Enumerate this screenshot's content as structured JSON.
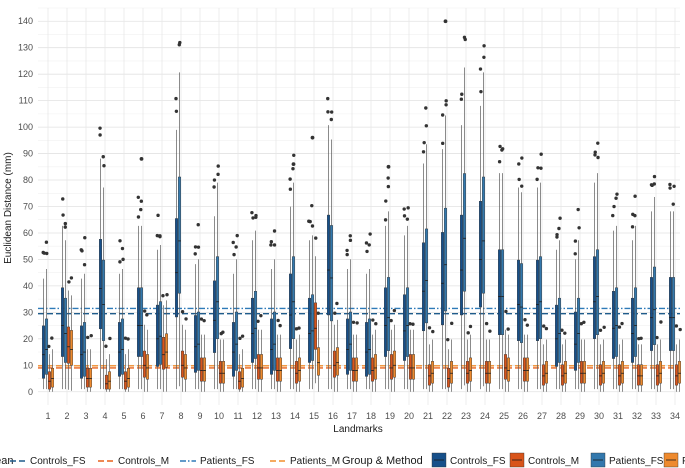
{
  "chart_data": {
    "type": "boxplot",
    "xlabel": "Landmarks",
    "ylabel": "Euclidean Distance (mm)",
    "ylim": [
      -5,
      145
    ],
    "yticks": [
      0,
      10,
      20,
      30,
      40,
      50,
      60,
      70,
      80,
      90,
      100,
      110,
      120,
      130,
      140
    ],
    "categories": [
      "1",
      "2",
      "3",
      "4",
      "5",
      "6",
      "7",
      "8",
      "9",
      "10",
      "11",
      "12",
      "13",
      "14",
      "15",
      "16",
      "17",
      "18",
      "19",
      "20",
      "21",
      "22",
      "23",
      "24",
      "25",
      "26",
      "27",
      "28",
      "29",
      "30",
      "31",
      "32",
      "33",
      "34"
    ],
    "grid": true,
    "legend_placement": "bottom",
    "mean_lines": {
      "legend_title": "Mean",
      "items": [
        {
          "name": "Controls_FS",
          "value": 29.5,
          "color": "#1f5c8c",
          "dash": "dashed"
        },
        {
          "name": "Controls_M",
          "value": 9.0,
          "color": "#e8601c",
          "dash": "dashed"
        },
        {
          "name": "Patients_FS",
          "value": 31.5,
          "color": "#2e7ab8",
          "dash": "dotdash"
        },
        {
          "name": "Patients_M",
          "value": 9.8,
          "color": "#f28e2b",
          "dash": "dashed"
        }
      ]
    },
    "group_legend": {
      "title": "Group & Method",
      "items": [
        {
          "name": "Controls_FS",
          "color": "#17508a"
        },
        {
          "name": "Controls_M",
          "color": "#d8541a"
        },
        {
          "name": "Patients_FS",
          "color": "#3378ad"
        },
        {
          "name": "Patients_M",
          "color": "#ee8a2e"
        }
      ]
    },
    "series": [
      {
        "name": "Controls_FS",
        "color": "#17508a",
        "medians": [
          14,
          25,
          14,
          39,
          15,
          25,
          20,
          45,
          17,
          27,
          15,
          22,
          16,
          29,
          22,
          46,
          16,
          15,
          25,
          23,
          38,
          41,
          46,
          50,
          36,
          33,
          33,
          20,
          18,
          34,
          24,
          22,
          28,
          28
        ]
      },
      {
        "name": "Patients_FS",
        "color": "#3378ad",
        "medians": [
          16,
          22,
          15,
          33,
          16,
          25,
          21,
          57,
          18,
          34,
          18,
          24,
          18,
          34,
          23,
          43,
          18,
          16,
          28,
          25,
          42,
          48,
          58,
          57,
          36,
          32,
          34,
          22,
          22,
          36,
          25,
          25,
          31,
          28
        ]
      },
      {
        "name": "Controls_M",
        "color": "#d8541a",
        "medians": [
          4,
          17,
          5,
          3,
          4,
          10,
          14,
          10,
          8,
          7,
          4,
          9,
          8,
          7,
          24,
          10,
          8,
          8,
          9,
          9,
          6,
          5,
          7,
          7,
          9,
          8,
          6,
          6,
          7,
          6,
          6,
          6,
          6,
          6
        ]
      },
      {
        "name": "Patients_M",
        "color": "#ee8a2e",
        "medians": [
          5,
          16,
          5,
          4,
          5,
          9,
          15,
          9,
          8,
          7,
          5,
          9,
          8,
          8,
          11,
          11,
          8,
          9,
          10,
          9,
          7,
          7,
          8,
          7,
          8,
          8,
          7,
          7,
          7,
          7,
          7,
          6,
          7,
          7
        ]
      }
    ],
    "outlier_highlights": [
      {
        "landmark": "22",
        "value": 140
      },
      {
        "landmark": "15",
        "value": 96
      },
      {
        "landmark": "6",
        "value": 88
      },
      {
        "landmark": "19",
        "value": 85
      },
      {
        "landmark": "14",
        "value": 86
      }
    ]
  }
}
